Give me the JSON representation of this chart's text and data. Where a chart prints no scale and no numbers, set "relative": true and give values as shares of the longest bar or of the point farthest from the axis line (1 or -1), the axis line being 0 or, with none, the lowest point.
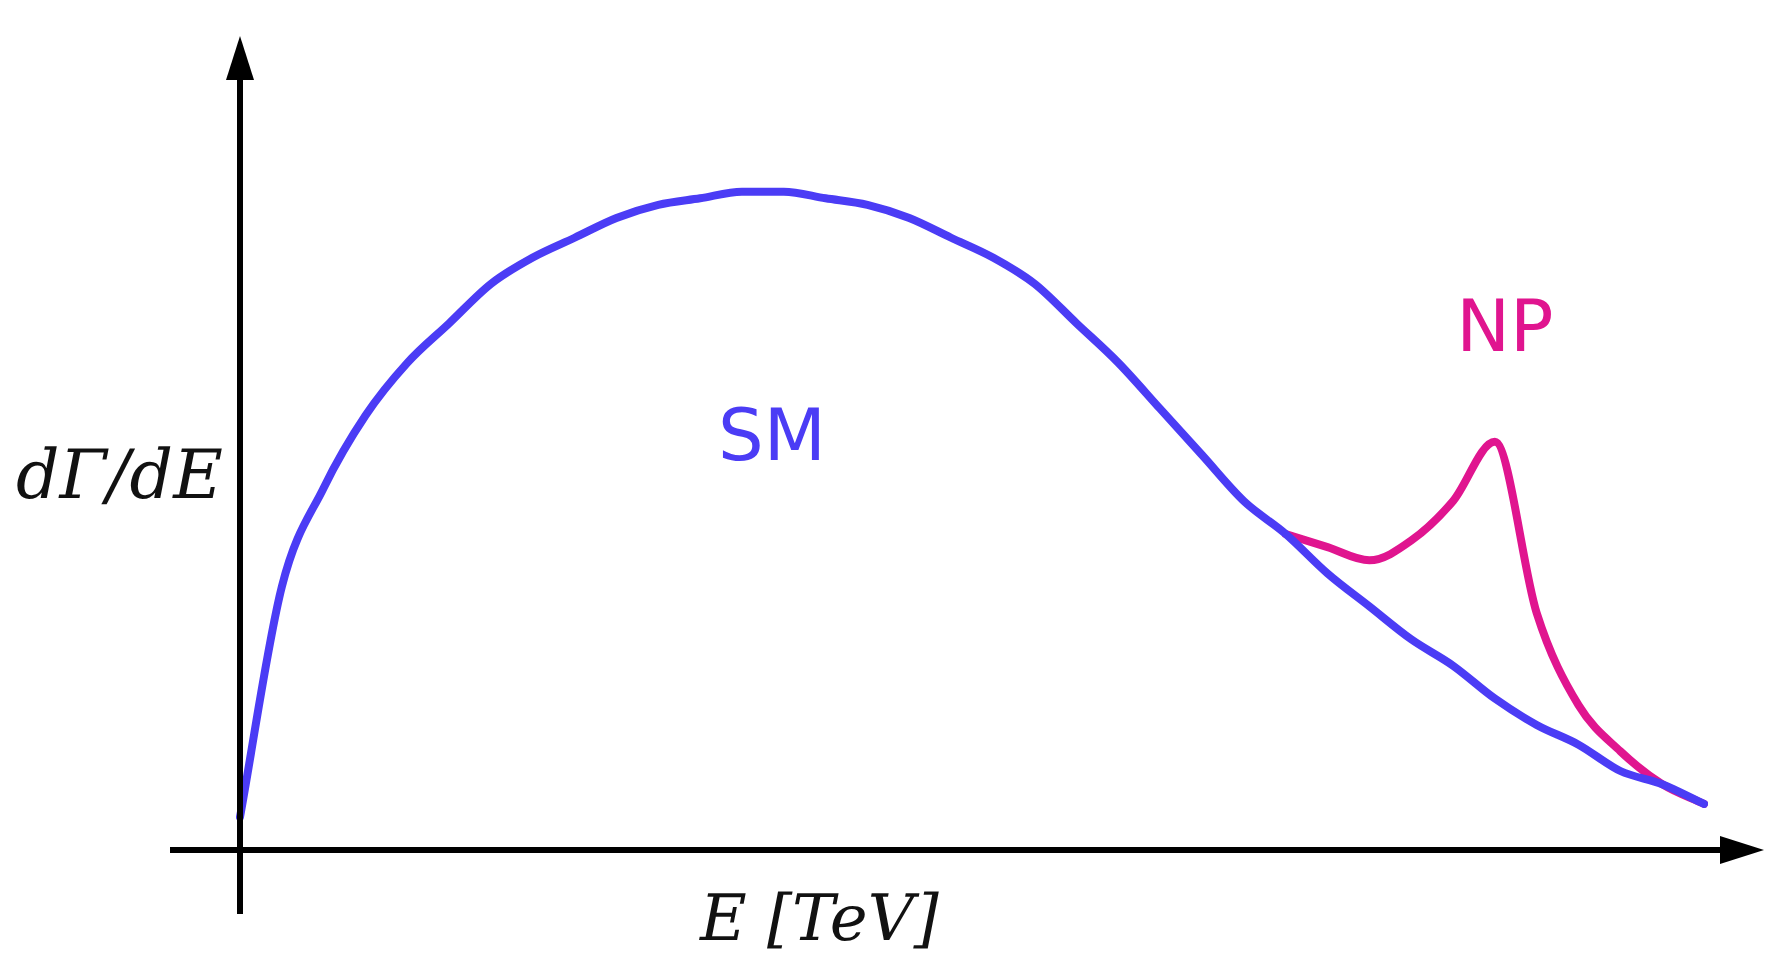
{
  "chart_data": {
    "type": "line",
    "relative": true,
    "xlabel": "E [TeV]",
    "ylabel": "dΓ/dE",
    "legend": false,
    "marker": "none",
    "line_style": "solid",
    "tick_labels": false,
    "categories": [
      null,
      null,
      null,
      null,
      null,
      null,
      null,
      null,
      null,
      null,
      null,
      null,
      null,
      null,
      null,
      null,
      null,
      null,
      null,
      null,
      null,
      null,
      null,
      null,
      null,
      null,
      null,
      null,
      null,
      null,
      null,
      null,
      null,
      null,
      null,
      null
    ],
    "series": [
      {
        "name": "SM",
        "color": "#4b3cf5",
        "values": [
          0.05,
          0.4,
          0.55,
          0.66,
          0.74,
          0.8,
          0.86,
          0.9,
          0.93,
          0.96,
          0.98,
          0.99,
          1.0,
          1.0,
          0.99,
          0.98,
          0.96,
          0.93,
          0.9,
          0.86,
          0.8,
          0.74,
          0.67,
          0.6,
          0.53,
          0.48,
          0.42,
          0.37,
          0.32,
          0.28,
          0.23,
          0.19,
          0.16,
          0.12,
          0.1,
          0.07
        ]
      },
      {
        "name": "NP",
        "color": "#e0158f",
        "values": [
          null,
          null,
          null,
          null,
          null,
          null,
          null,
          null,
          null,
          null,
          null,
          null,
          null,
          null,
          null,
          null,
          null,
          null,
          null,
          null,
          null,
          null,
          null,
          null,
          null,
          0.48,
          0.46,
          0.44,
          0.47,
          0.53,
          0.62,
          0.36,
          0.22,
          0.15,
          0.1,
          0.07
        ]
      }
    ]
  }
}
